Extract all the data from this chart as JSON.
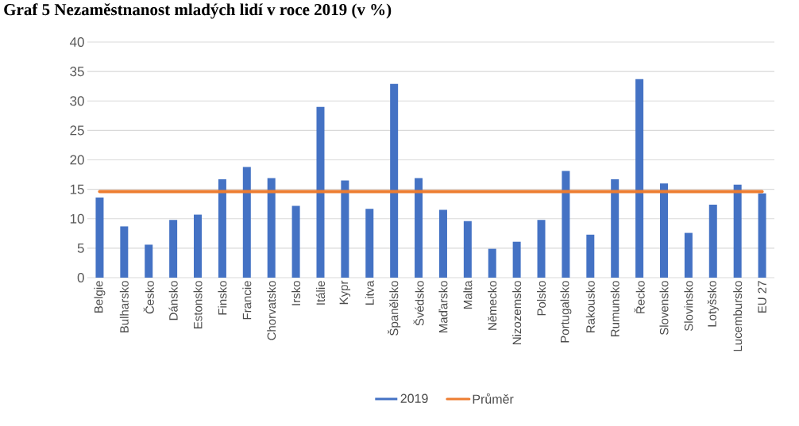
{
  "chart_data": {
    "type": "bar",
    "title": "Graf 5 Nezaměstnanost mladých lidí v roce 2019 (v %)",
    "categories": [
      "Belgie",
      "Bulharsko",
      "Česko",
      "Dánsko",
      "Estonsko",
      "Finsko",
      "Francie",
      "Chorvatsko",
      "Irsko",
      "Itálie",
      "Kypr",
      "Litva",
      "Španělsko",
      "Švédsko",
      "Maďarsko",
      "Malta",
      "Německo",
      "Nizozemsko",
      "Polsko",
      "Portugalsko",
      "Rakousko",
      "Rumunsko",
      "Řecko",
      "Slovensko",
      "Slovinsko",
      "Lotyšsko",
      "Lucembursko",
      "EU 27"
    ],
    "series": [
      {
        "name": "2019",
        "color": "#4472c4",
        "values": [
          13.6,
          8.7,
          5.6,
          9.8,
          10.7,
          16.7,
          18.8,
          16.9,
          12.2,
          29.0,
          16.5,
          11.7,
          32.9,
          16.9,
          11.5,
          9.6,
          4.9,
          6.1,
          9.8,
          18.1,
          7.3,
          16.7,
          33.7,
          16.0,
          7.6,
          12.4,
          15.8,
          14.3
        ]
      },
      {
        "name": "Průměr",
        "type": "line",
        "color": "#ed7d31",
        "values": [
          14.6,
          14.6,
          14.6,
          14.6,
          14.6,
          14.6,
          14.6,
          14.6,
          14.6,
          14.6,
          14.6,
          14.6,
          14.6,
          14.6,
          14.6,
          14.6,
          14.6,
          14.6,
          14.6,
          14.6,
          14.6,
          14.6,
          14.6,
          14.6,
          14.6,
          14.6,
          14.6,
          14.6
        ]
      }
    ],
    "ylim": [
      0,
      40
    ],
    "yticks": [
      0,
      5,
      10,
      15,
      20,
      25,
      30,
      35,
      40
    ],
    "grid": "y",
    "legend": "bottom"
  }
}
